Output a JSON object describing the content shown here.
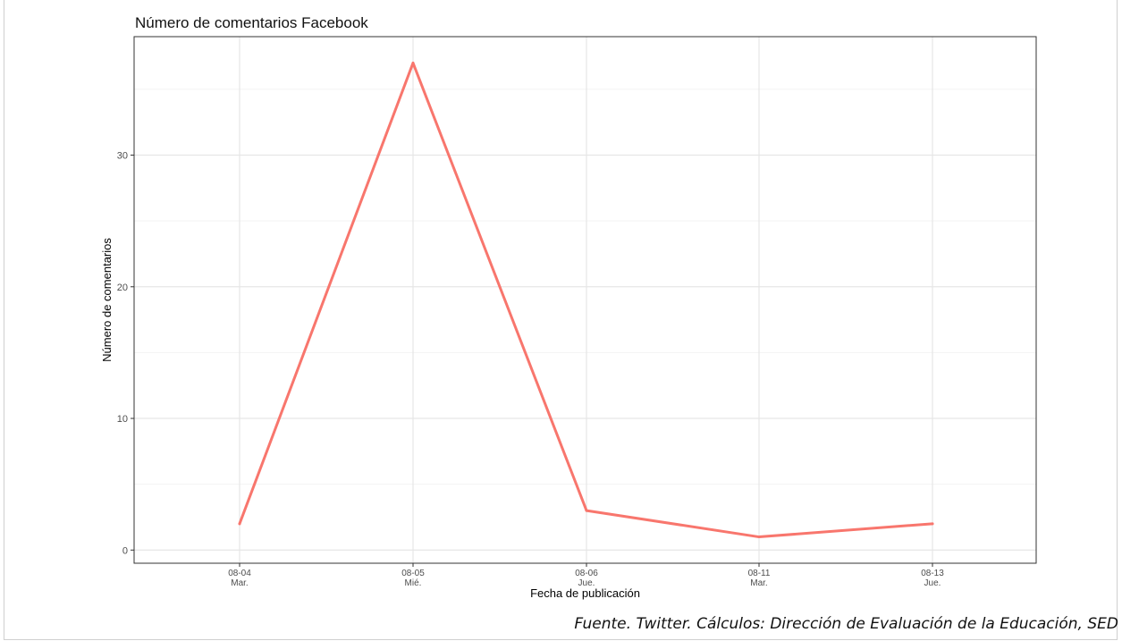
{
  "chart_data": {
    "type": "line",
    "title": "Número de comentarios Facebook",
    "xlabel": "Fecha de publicación",
    "ylabel": "Número de comentarios",
    "categories": [
      {
        "date": "08-04",
        "day": "Mar."
      },
      {
        "date": "08-05",
        "day": "Mié."
      },
      {
        "date": "08-06",
        "day": "Jue."
      },
      {
        "date": "08-11",
        "day": "Mar."
      },
      {
        "date": "08-13",
        "day": "Jue."
      }
    ],
    "values": [
      2,
      37,
      3,
      1,
      2
    ],
    "yticks": [
      0,
      10,
      20,
      30
    ],
    "ylim": [
      -1,
      39
    ],
    "grid": true,
    "line_color": "#f8766d"
  },
  "source_note": "Fuente. Twitter. Cálculos: Dirección de Evaluación de la Educación, SED"
}
